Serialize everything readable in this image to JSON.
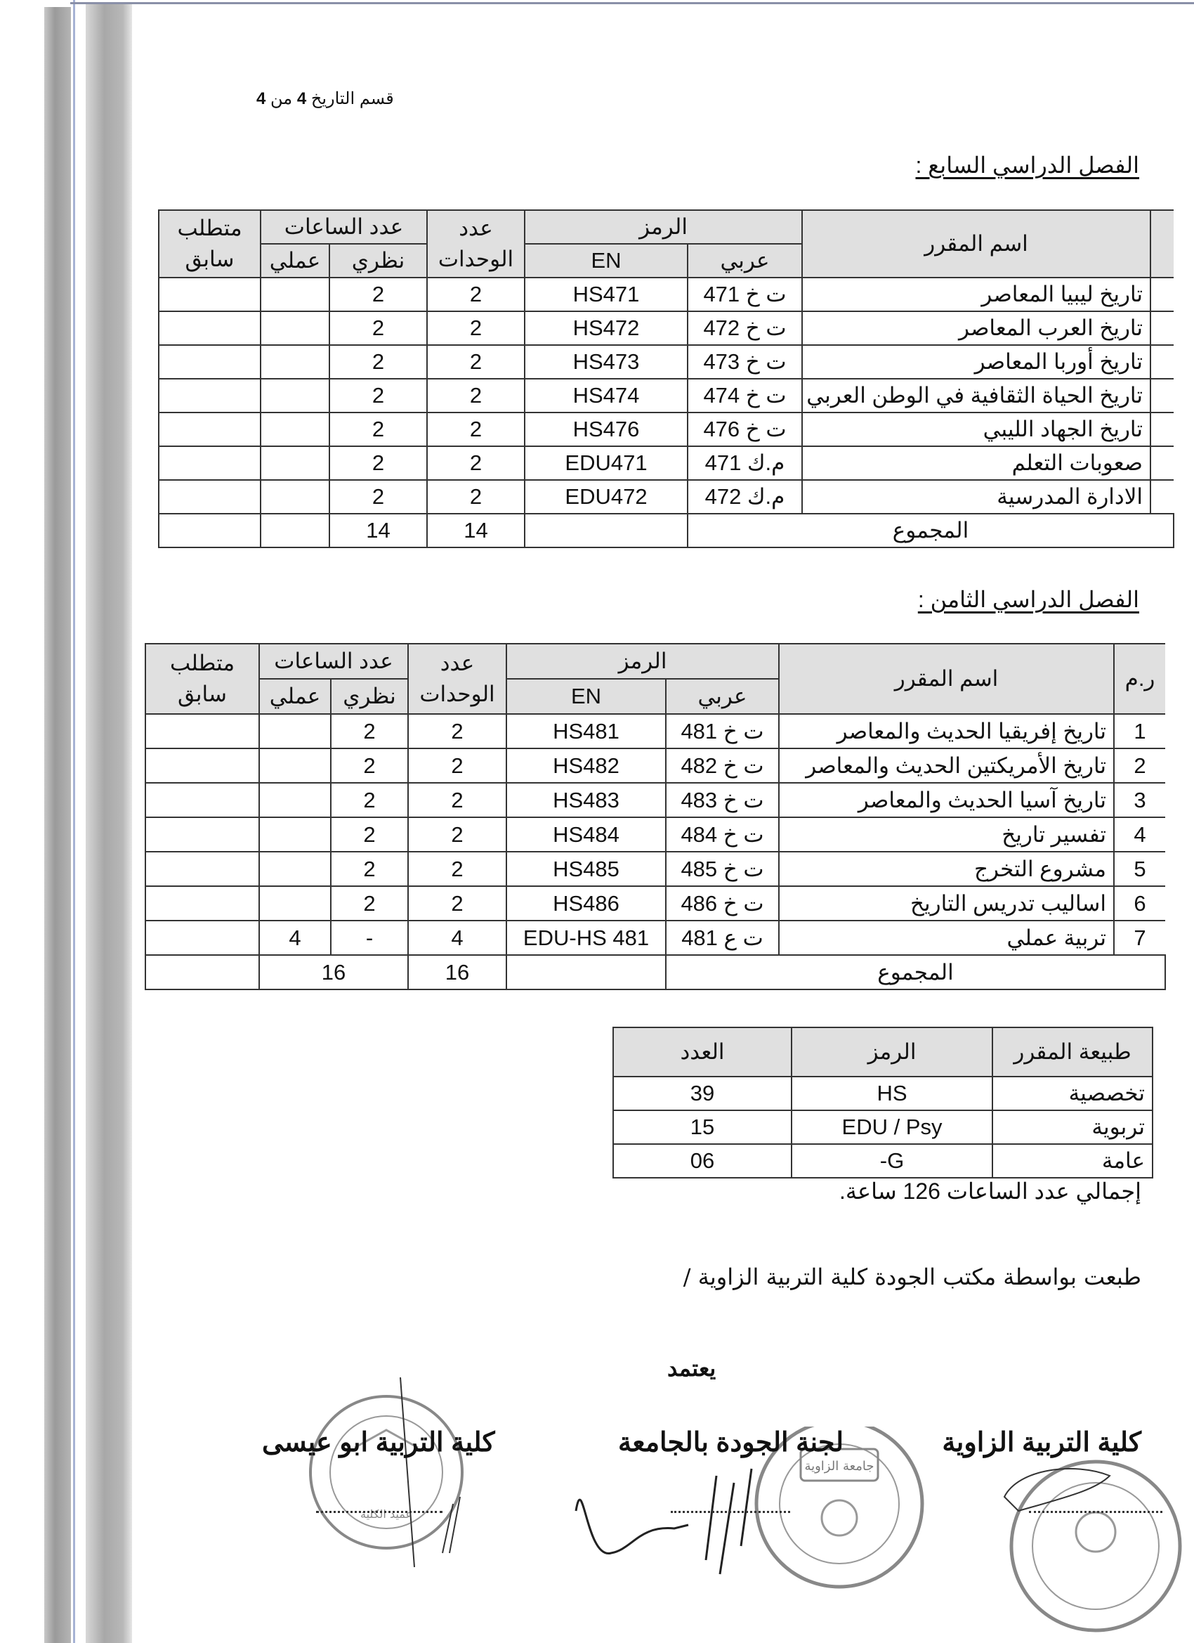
{
  "page_header": {
    "text": "قسم التاريخ",
    "page": "4",
    "of": "من",
    "total": "4"
  },
  "semesters": [
    {
      "title": "الفصل الدراسي السابع :",
      "headers": {
        "num": "",
        "name": "اسم المقرر",
        "code": "الرمز",
        "code_ar": "عربي",
        "code_en": "EN",
        "units": "عدد الوحدات",
        "hours": "عدد الساعات",
        "theory": "نظري",
        "practical": "عملي",
        "prereq": "متطلب سابق"
      },
      "rows": [
        {
          "num": "",
          "name": "تاريخ ليبيا المعاصر",
          "code_ar": "ت خ 471",
          "code_en": "HS471",
          "units": "2",
          "theory": "2",
          "practical": "",
          "prereq": ""
        },
        {
          "num": "",
          "name": "تاريخ العرب المعاصر",
          "code_ar": "ت خ 472",
          "code_en": "HS472",
          "units": "2",
          "theory": "2",
          "practical": "",
          "prereq": ""
        },
        {
          "num": "",
          "name": "تاريخ أوربا المعاصر",
          "code_ar": "ت خ 473",
          "code_en": "HS473",
          "units": "2",
          "theory": "2",
          "practical": "",
          "prereq": ""
        },
        {
          "num": "",
          "name": "تاريخ الحياة الثقافية في الوطن العربي",
          "code_ar": "ت خ 474",
          "code_en": "HS474",
          "units": "2",
          "theory": "2",
          "practical": "",
          "prereq": ""
        },
        {
          "num": "",
          "name": "تاريخ الجهاد الليبي",
          "code_ar": "ت خ 476",
          "code_en": "HS476",
          "units": "2",
          "theory": "2",
          "practical": "",
          "prereq": ""
        },
        {
          "num": "",
          "name": "صعوبات التعلم",
          "code_ar": "م.ك 471",
          "code_en": "EDU471",
          "units": "2",
          "theory": "2",
          "practical": "",
          "prereq": ""
        },
        {
          "num": "",
          "name": "الادارة المدرسية",
          "code_ar": "م.ك 472",
          "code_en": "EDU472",
          "units": "2",
          "theory": "2",
          "practical": "",
          "prereq": ""
        }
      ],
      "totals": {
        "label": "المجموع",
        "units": "14",
        "theory": "14",
        "merged_hours": false
      }
    },
    {
      "title": "الفصل الدراسي الثامن :",
      "headers": {
        "num": "ر.م",
        "name": "اسم المقرر",
        "code": "الرمز",
        "code_ar": "عربي",
        "code_en": "EN",
        "units": "عدد الوحدات",
        "hours": "عدد الساعات",
        "theory": "نظري",
        "practical": "عملي",
        "prereq": "متطلب سابق"
      },
      "rows": [
        {
          "num": "1",
          "name": "تاريخ إفريقيا الحديث والمعاصر",
          "code_ar": "ت خ 481",
          "code_en": "HS481",
          "units": "2",
          "theory": "2",
          "practical": "",
          "prereq": ""
        },
        {
          "num": "2",
          "name": "تاريخ الأمريكتين الحديث والمعاصر",
          "code_ar": "ت خ 482",
          "code_en": "HS482",
          "units": "2",
          "theory": "2",
          "practical": "",
          "prereq": ""
        },
        {
          "num": "3",
          "name": "تاريخ آسيا الحديث والمعاصر",
          "code_ar": "ت خ 483",
          "code_en": "HS483",
          "units": "2",
          "theory": "2",
          "practical": "",
          "prereq": ""
        },
        {
          "num": "4",
          "name": "تفسير تاريخ",
          "code_ar": "ت خ 484",
          "code_en": "HS484",
          "units": "2",
          "theory": "2",
          "practical": "",
          "prereq": ""
        },
        {
          "num": "5",
          "name": "مشروع التخرج",
          "code_ar": "ت خ 485",
          "code_en": "HS485",
          "units": "2",
          "theory": "2",
          "practical": "",
          "prereq": ""
        },
        {
          "num": "6",
          "name": "اساليب تدريس التاريخ",
          "code_ar": "ت خ 486",
          "code_en": "HS486",
          "units": "2",
          "theory": "2",
          "practical": "",
          "prereq": ""
        },
        {
          "num": "7",
          "name": "تربية عملي",
          "code_ar": "ت ع 481",
          "code_en": "EDU-HS 481",
          "units": "4",
          "theory": "-",
          "practical": "4",
          "prereq": ""
        }
      ],
      "totals": {
        "label": "المجموع",
        "units": "16",
        "theory": "16",
        "merged_hours": true
      }
    }
  ],
  "summary": {
    "headers": {
      "type": "طبيعة المقرر",
      "code": "الرمز",
      "count": "العدد"
    },
    "rows": [
      {
        "type": "تخصصية",
        "code": "HS",
        "count": "39"
      },
      {
        "type": "تربوية",
        "code": "EDU / Psy",
        "count": "15"
      },
      {
        "type": "عامة",
        "code": "G-",
        "count": "06"
      }
    ],
    "total_hours_text": "إجمالي عدد الساعات 126 ساعة."
  },
  "printed_by": "طبعت بواسطة مكتب الجودة كلية التربية الزاوية /",
  "approval": {
    "label": "يعتمد",
    "signatories": [
      "كلية التربية الزاوية",
      "لجنة الجودة بالجامعة",
      "كلية التربية ابو عيسى"
    ]
  },
  "stamps": {
    "middle_inner": "جامعة الزاوية",
    "dean": "عميد الكلية"
  }
}
